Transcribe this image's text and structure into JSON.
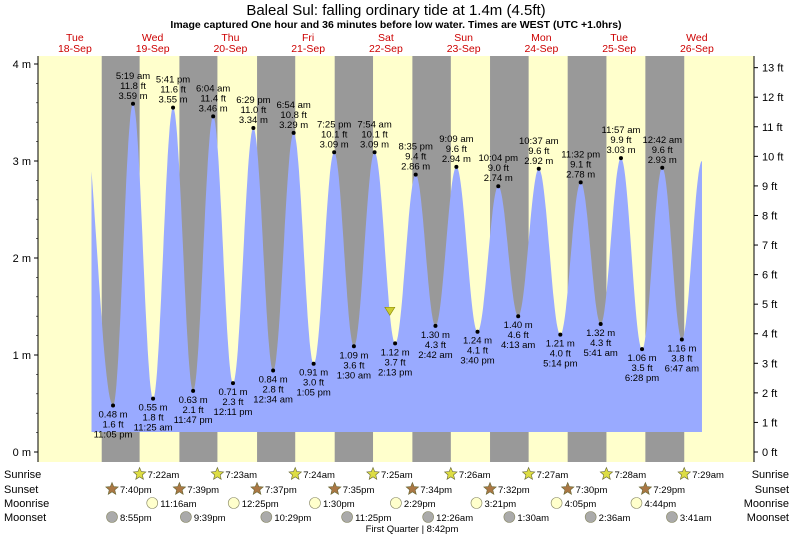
{
  "title": "Baleal Sul: falling  ordinary tide at 1.4m (4.5ft)",
  "subtitle": "Image captured One hour and 36 minutes before low water. Times are WEST (UTC +1.0hrs)",
  "colors": {
    "day": "#ffffcc",
    "night": "#999999",
    "tide": "#99aaff",
    "day_label": "#cc0000",
    "marker": "#cccc33"
  },
  "chart_data": {
    "type": "area",
    "title": "Baleal Sul: falling  ordinary tide at 1.4m (4.5ft)",
    "ylabel_left": "m",
    "ylabel_right": "ft",
    "ylim_m": [
      -0.05,
      4.15
    ],
    "y_ticks_m": [
      {
        "v": 0,
        "label": "0 m"
      },
      {
        "v": 1,
        "label": "1 m"
      },
      {
        "v": 2,
        "label": "2 m"
      },
      {
        "v": 3,
        "label": "3 m"
      },
      {
        "v": 4,
        "label": "4 m"
      }
    ],
    "y_ticks_ft": [
      "0 ft",
      "1 ft",
      "2 ft",
      "3 ft",
      "4 ft",
      "5 ft",
      "6 ft",
      "7 ft",
      "8 ft",
      "9 ft",
      "10 ft",
      "11 ft",
      "12 ft",
      "13 ft"
    ],
    "days": [
      {
        "dow": "Tue",
        "date": "18-Sep"
      },
      {
        "dow": "Wed",
        "date": "19-Sep"
      },
      {
        "dow": "Thu",
        "date": "20-Sep"
      },
      {
        "dow": "Fri",
        "date": "21-Sep"
      },
      {
        "dow": "Sat",
        "date": "22-Sep"
      },
      {
        "dow": "Sun",
        "date": "23-Sep"
      },
      {
        "dow": "Mon",
        "date": "24-Sep"
      },
      {
        "dow": "Tue",
        "date": "25-Sep"
      },
      {
        "dow": "Wed",
        "date": "26-Sep"
      }
    ],
    "extremes": [
      {
        "type": "high",
        "t": 0.55,
        "m": 3.7
      },
      {
        "type": "low",
        "t": 0.965,
        "m": 0.48,
        "time": "11:05 pm",
        "ft": "1.6 ft"
      },
      {
        "type": "high",
        "t": 1.222,
        "m": 3.59,
        "time": "5:19 am",
        "ft": "11.8 ft"
      },
      {
        "type": "low",
        "t": 1.48,
        "m": 0.55,
        "time": "11:25 am",
        "ft": "1.8 ft"
      },
      {
        "type": "high",
        "t": 1.737,
        "m": 3.55,
        "time": "5:41 pm",
        "ft": "11.6 ft"
      },
      {
        "type": "low",
        "t": 1.995,
        "m": 0.63,
        "time": "11:47 pm",
        "ft": "2.1 ft"
      },
      {
        "type": "high",
        "t": 2.253,
        "m": 3.46,
        "time": "6:04 am",
        "ft": "11.4 ft"
      },
      {
        "type": "low",
        "t": 2.508,
        "m": 0.71,
        "time": "12:11 pm",
        "ft": "2.3 ft"
      },
      {
        "type": "high",
        "t": 2.77,
        "m": 3.34,
        "time": "6:29 pm",
        "ft": "11.0 ft"
      },
      {
        "type": "low",
        "t": 3.024,
        "m": 0.84,
        "time": "12:34 am",
        "ft": "2.8 ft"
      },
      {
        "type": "high",
        "t": 3.288,
        "m": 3.29,
        "time": "6:54 am",
        "ft": "10.8 ft"
      },
      {
        "type": "low",
        "t": 3.545,
        "m": 0.91,
        "time": "1:05 pm",
        "ft": "3.0 ft"
      },
      {
        "type": "high",
        "t": 3.809,
        "m": 3.09,
        "time": "7:25 pm",
        "ft": "10.1 ft"
      },
      {
        "type": "low",
        "t": 4.063,
        "m": 1.09,
        "time": "1:30 am",
        "ft": "3.6 ft"
      },
      {
        "type": "high",
        "t": 4.329,
        "m": 3.09,
        "time": "7:54 am",
        "ft": "10.1 ft"
      },
      {
        "type": "low",
        "t": 4.593,
        "m": 1.12,
        "time": "2:13 pm",
        "ft": "3.7 ft"
      },
      {
        "type": "high",
        "t": 4.858,
        "m": 2.86,
        "time": "8:35 pm",
        "ft": "9.4 ft"
      },
      {
        "type": "low",
        "t": 5.112,
        "m": 1.3,
        "time": "2:42 am",
        "ft": "4.3 ft"
      },
      {
        "type": "high",
        "t": 5.381,
        "m": 2.94,
        "time": "9:09 am",
        "ft": "9.6 ft"
      },
      {
        "type": "low",
        "t": 5.653,
        "m": 1.24,
        "time": "3:40 pm",
        "ft": "4.1 ft"
      },
      {
        "type": "high",
        "t": 5.92,
        "m": 2.74,
        "time": "10:04 pm",
        "ft": "9.0 ft"
      },
      {
        "type": "low",
        "t": 6.176,
        "m": 1.4,
        "time": "4:13 am",
        "ft": "4.6 ft"
      },
      {
        "type": "high",
        "t": 6.441,
        "m": 2.92,
        "time": "10:37 am",
        "ft": "9.6 ft"
      },
      {
        "type": "low",
        "t": 6.718,
        "m": 1.21,
        "time": "5:14 pm",
        "ft": "4.0 ft"
      },
      {
        "type": "high",
        "t": 6.98,
        "m": 2.78,
        "time": "11:32 pm",
        "ft": "9.1 ft"
      },
      {
        "type": "low",
        "t": 7.237,
        "m": 1.32,
        "time": "5:41 am",
        "ft": "4.3 ft"
      },
      {
        "type": "high",
        "t": 7.498,
        "m": 3.03,
        "time": "11:57 am",
        "ft": "9.9 ft"
      },
      {
        "type": "low",
        "t": 7.769,
        "m": 1.06,
        "time": "6:28 pm",
        "ft": "3.5 ft"
      },
      {
        "type": "high",
        "t": 8.029,
        "m": 2.93,
        "time": "12:42 am",
        "ft": "9.6 ft"
      },
      {
        "type": "low",
        "t": 8.281,
        "m": 1.16,
        "time": "6:47 am",
        "ft": "3.8 ft"
      },
      {
        "type": "high",
        "t": 8.54,
        "m": 3.0
      }
    ],
    "current": {
      "t": 4.525,
      "m": 1.42
    },
    "sunrise": [
      "7:22am",
      "7:23am",
      "7:24am",
      "7:25am",
      "7:26am",
      "7:27am",
      "7:28am",
      "7:29am"
    ],
    "sunset": [
      "7:40pm",
      "7:39pm",
      "7:37pm",
      "7:35pm",
      "7:34pm",
      "7:32pm",
      "7:30pm",
      "7:29pm"
    ],
    "moonrise": [
      "11:16am",
      "12:25pm",
      "1:30pm",
      "2:29pm",
      "3:21pm",
      "4:05pm",
      "4:44pm"
    ],
    "moonset": [
      "8:55pm",
      "9:39pm",
      "10:29pm",
      "11:25pm",
      "12:26am",
      "1:30am",
      "2:36am",
      "3:41am"
    ],
    "moon_phase": "First Quarter | 8:42pm",
    "row_labels": {
      "sunrise": "Sunrise",
      "sunset": "Sunset",
      "moonrise": "Moonrise",
      "moonset": "Moonset"
    }
  }
}
